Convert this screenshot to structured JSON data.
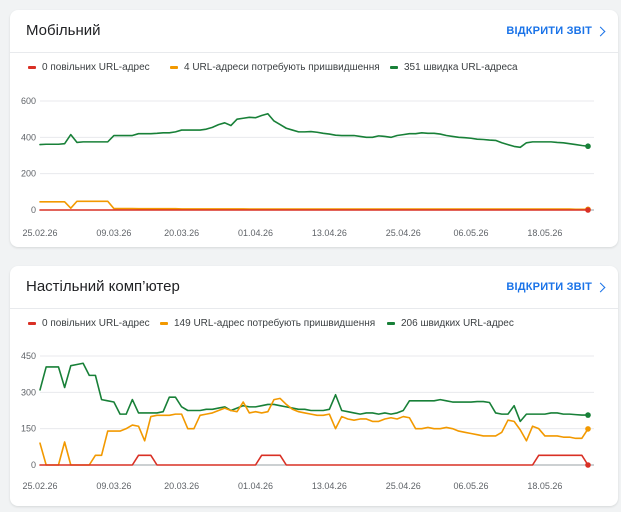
{
  "report_link_label": "ВІДКРИТИ ЗВІТ",
  "colors": {
    "slow": "#d93025",
    "improve": "#f29900",
    "fast": "#188038"
  },
  "cards": [
    {
      "id": "mobile",
      "title": "Мобільний",
      "legend": [
        {
          "key": "slow",
          "label": "0 повільних URL-адрес"
        },
        {
          "key": "improve",
          "label": "4 URL-адреси потребують пришвидшення"
        },
        {
          "key": "fast",
          "label": "351 швидка URL-адреса"
        }
      ]
    },
    {
      "id": "desktop",
      "title": "Настільний комп’ютер",
      "legend": [
        {
          "key": "slow",
          "label": "0 повільних URL-адрес"
        },
        {
          "key": "improve",
          "label": "149 URL-адрес потребують пришвидшення"
        },
        {
          "key": "fast",
          "label": "206 швидких URL-адрес"
        }
      ]
    }
  ],
  "chart_data": [
    {
      "type": "line",
      "x": [
        "25.02.26",
        "26.02.26",
        "27.02.26",
        "28.02.26",
        "01.03.26",
        "02.03.26",
        "03.03.26",
        "04.03.26",
        "05.03.26",
        "06.03.26",
        "07.03.26",
        "08.03.26",
        "09.03.26",
        "10.03.26",
        "11.03.26",
        "12.03.26",
        "13.03.26",
        "14.03.26",
        "15.03.26",
        "16.03.26",
        "17.03.26",
        "18.03.26",
        "19.03.26",
        "20.03.26",
        "21.03.26",
        "22.03.26",
        "23.03.26",
        "24.03.26",
        "25.03.26",
        "26.03.26",
        "27.03.26",
        "28.03.26",
        "29.03.26",
        "30.03.26",
        "31.03.26",
        "01.04.26",
        "02.04.26",
        "03.04.26",
        "04.04.26",
        "05.04.26",
        "06.04.26",
        "07.04.26",
        "08.04.26",
        "09.04.26",
        "10.04.26",
        "11.04.26",
        "12.04.26",
        "13.04.26",
        "14.04.26",
        "15.04.26",
        "16.04.26",
        "17.04.26",
        "18.04.26",
        "19.04.26",
        "20.04.26",
        "21.04.26",
        "22.04.26",
        "23.04.26",
        "24.04.26",
        "25.04.26",
        "26.04.26",
        "27.04.26",
        "28.04.26",
        "29.04.26",
        "30.04.26",
        "01.05.26",
        "02.05.26",
        "03.05.26",
        "04.05.26",
        "05.05.26",
        "06.05.26",
        "07.05.26",
        "08.05.26",
        "09.05.26",
        "10.05.26",
        "11.05.26",
        "12.05.26",
        "13.05.26",
        "14.05.26",
        "15.05.26",
        "16.05.26",
        "17.05.26",
        "18.05.26",
        "19.05.26",
        "20.05.26",
        "21.05.26",
        "22.05.26",
        "23.05.26",
        "24.05.26",
        "25.05.26"
      ],
      "x_tick_labels": [
        "25.02.26",
        "09.03.26",
        "20.03.26",
        "01.04.26",
        "13.04.26",
        "25.04.26",
        "06.05.26",
        "18.05.26"
      ],
      "y_ticks": [
        0,
        200,
        400,
        600
      ],
      "ylim": [
        0,
        600
      ],
      "series": [
        {
          "key": "slow",
          "values": [
            0,
            0,
            0,
            0,
            0,
            0,
            0,
            0,
            0,
            0,
            0,
            0,
            0,
            0,
            0,
            0,
            0,
            0,
            0,
            0,
            0,
            0,
            0,
            0,
            0,
            0,
            0,
            0,
            0,
            0,
            0,
            0,
            0,
            0,
            0,
            0,
            0,
            0,
            0,
            0,
            0,
            0,
            0,
            0,
            0,
            0,
            0,
            0,
            0,
            0,
            0,
            0,
            0,
            0,
            0,
            0,
            0,
            0,
            0,
            0,
            0,
            0,
            0,
            0,
            0,
            0,
            0,
            0,
            0,
            0,
            0,
            0,
            0,
            0,
            0,
            0,
            0,
            0,
            0,
            0,
            0,
            0,
            0,
            0,
            0,
            0,
            0,
            0,
            0,
            0
          ]
        },
        {
          "key": "improve",
          "values": [
            45,
            45,
            45,
            45,
            45,
            10,
            48,
            48,
            48,
            48,
            48,
            48,
            8,
            8,
            8,
            8,
            7,
            7,
            7,
            7,
            7,
            7,
            7,
            6,
            6,
            6,
            6,
            6,
            6,
            6,
            6,
            6,
            6,
            6,
            5,
            5,
            5,
            5,
            5,
            5,
            5,
            5,
            5,
            5,
            5,
            5,
            5,
            5,
            5,
            5,
            5,
            5,
            5,
            5,
            5,
            5,
            5,
            5,
            5,
            5,
            5,
            5,
            5,
            5,
            5,
            5,
            5,
            5,
            5,
            5,
            5,
            5,
            5,
            5,
            5,
            5,
            5,
            5,
            5,
            5,
            5,
            5,
            5,
            5,
            5,
            5,
            5,
            4,
            4,
            4
          ]
        },
        {
          "key": "fast",
          "values": [
            360,
            362,
            362,
            362,
            365,
            415,
            372,
            375,
            375,
            375,
            375,
            375,
            410,
            410,
            410,
            410,
            420,
            420,
            420,
            422,
            425,
            425,
            430,
            440,
            440,
            440,
            440,
            445,
            455,
            470,
            480,
            465,
            500,
            505,
            510,
            508,
            520,
            530,
            490,
            470,
            450,
            440,
            430,
            430,
            432,
            428,
            422,
            418,
            412,
            410,
            410,
            410,
            405,
            400,
            400,
            408,
            405,
            400,
            410,
            415,
            420,
            420,
            425,
            422,
            422,
            418,
            410,
            405,
            400,
            398,
            395,
            390,
            388,
            385,
            383,
            370,
            360,
            350,
            345,
            370,
            375,
            375,
            375,
            375,
            372,
            370,
            365,
            360,
            355,
            351
          ]
        }
      ]
    },
    {
      "type": "line",
      "x": [
        "25.02.26",
        "26.02.26",
        "27.02.26",
        "28.02.26",
        "01.03.26",
        "02.03.26",
        "03.03.26",
        "04.03.26",
        "05.03.26",
        "06.03.26",
        "07.03.26",
        "08.03.26",
        "09.03.26",
        "10.03.26",
        "11.03.26",
        "12.03.26",
        "13.03.26",
        "14.03.26",
        "15.03.26",
        "16.03.26",
        "17.03.26",
        "18.03.26",
        "19.03.26",
        "20.03.26",
        "21.03.26",
        "22.03.26",
        "23.03.26",
        "24.03.26",
        "25.03.26",
        "26.03.26",
        "27.03.26",
        "28.03.26",
        "29.03.26",
        "30.03.26",
        "31.03.26",
        "01.04.26",
        "02.04.26",
        "03.04.26",
        "04.04.26",
        "05.04.26",
        "06.04.26",
        "07.04.26",
        "08.04.26",
        "09.04.26",
        "10.04.26",
        "11.04.26",
        "12.04.26",
        "13.04.26",
        "14.04.26",
        "15.04.26",
        "16.04.26",
        "17.04.26",
        "18.04.26",
        "19.04.26",
        "20.04.26",
        "21.04.26",
        "22.04.26",
        "23.04.26",
        "24.04.26",
        "25.04.26",
        "26.04.26",
        "27.04.26",
        "28.04.26",
        "29.04.26",
        "30.04.26",
        "01.05.26",
        "02.05.26",
        "03.05.26",
        "04.05.26",
        "05.05.26",
        "06.05.26",
        "07.05.26",
        "08.05.26",
        "09.05.26",
        "10.05.26",
        "11.05.26",
        "12.05.26",
        "13.05.26",
        "14.05.26",
        "15.05.26",
        "16.05.26",
        "17.05.26",
        "18.05.26",
        "19.05.26",
        "20.05.26",
        "21.05.26",
        "22.05.26",
        "23.05.26",
        "24.05.26",
        "25.05.26"
      ],
      "x_tick_labels": [
        "25.02.26",
        "09.03.26",
        "20.03.26",
        "01.04.26",
        "13.04.26",
        "25.04.26",
        "06.05.26",
        "18.05.26"
      ],
      "y_ticks": [
        0,
        150,
        300,
        450
      ],
      "ylim": [
        0,
        450
      ],
      "series": [
        {
          "key": "slow",
          "values": [
            0,
            0,
            0,
            0,
            0,
            0,
            0,
            0,
            0,
            0,
            0,
            0,
            0,
            0,
            0,
            0,
            40,
            40,
            40,
            0,
            0,
            0,
            0,
            0,
            0,
            0,
            0,
            0,
            0,
            0,
            0,
            0,
            0,
            0,
            0,
            0,
            40,
            40,
            40,
            40,
            0,
            0,
            0,
            0,
            0,
            0,
            0,
            0,
            0,
            0,
            0,
            0,
            0,
            0,
            0,
            0,
            0,
            0,
            0,
            0,
            0,
            0,
            0,
            0,
            0,
            0,
            0,
            0,
            0,
            0,
            0,
            0,
            0,
            0,
            0,
            0,
            0,
            0,
            0,
            0,
            0,
            40,
            40,
            40,
            40,
            40,
            40,
            40,
            40,
            0
          ]
        },
        {
          "key": "improve",
          "values": [
            90,
            0,
            0,
            0,
            95,
            0,
            0,
            0,
            0,
            40,
            40,
            140,
            140,
            140,
            150,
            165,
            160,
            100,
            200,
            205,
            205,
            205,
            210,
            210,
            150,
            150,
            205,
            210,
            215,
            225,
            235,
            225,
            220,
            260,
            215,
            220,
            215,
            220,
            270,
            275,
            250,
            230,
            220,
            215,
            210,
            205,
            205,
            210,
            150,
            200,
            190,
            185,
            190,
            190,
            180,
            180,
            190,
            195,
            190,
            200,
            195,
            150,
            150,
            155,
            150,
            150,
            155,
            150,
            140,
            135,
            130,
            125,
            120,
            120,
            120,
            135,
            185,
            180,
            145,
            100,
            160,
            150,
            120,
            120,
            120,
            115,
            115,
            110,
            110,
            149
          ]
        },
        {
          "key": "fast",
          "values": [
            310,
            405,
            405,
            405,
            320,
            410,
            415,
            420,
            370,
            370,
            270,
            265,
            260,
            210,
            210,
            270,
            215,
            215,
            215,
            215,
            220,
            280,
            280,
            240,
            225,
            225,
            225,
            230,
            230,
            235,
            240,
            225,
            235,
            245,
            240,
            240,
            245,
            250,
            250,
            245,
            240,
            235,
            230,
            230,
            225,
            225,
            225,
            230,
            290,
            225,
            220,
            215,
            210,
            215,
            215,
            210,
            215,
            210,
            215,
            225,
            265,
            265,
            265,
            265,
            265,
            270,
            265,
            260,
            260,
            260,
            260,
            262,
            262,
            258,
            215,
            210,
            210,
            245,
            180,
            210,
            210,
            210,
            210,
            215,
            215,
            210,
            210,
            208,
            206,
            206
          ]
        }
      ]
    }
  ]
}
